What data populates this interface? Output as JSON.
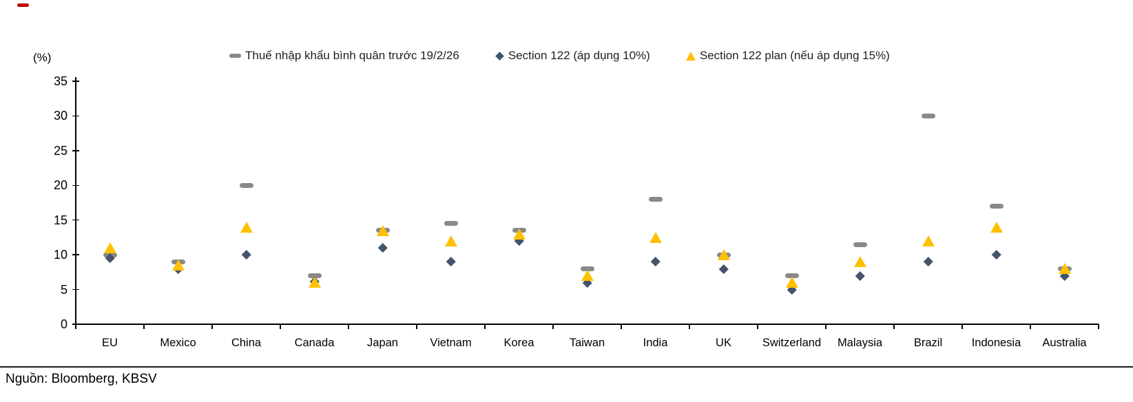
{
  "top_left_mark": {
    "shape": "dash",
    "color": "#C00000"
  },
  "source": "Nguồn: Bloomberg, KBSV",
  "chart_data": {
    "type": "scatter",
    "title": "",
    "ylabel": "(%)",
    "xlabel": "",
    "ylim": [
      0,
      35
    ],
    "yticks": [
      0,
      5,
      10,
      15,
      20,
      25,
      30,
      35
    ],
    "grid": false,
    "legend_position": "top",
    "categories": [
      "EU",
      "Mexico",
      "China",
      "Canada",
      "Japan",
      "Vietnam",
      "Korea",
      "Taiwan",
      "India",
      "UK",
      "Switzerland",
      "Malaysia",
      "Brazil",
      "Indonesia",
      "Australia"
    ],
    "series": [
      {
        "name": "Thuế nhập khẩu bình quân trước 19/2/26",
        "marker": "dash",
        "color": "#898989",
        "values": [
          10,
          9,
          20,
          7,
          13.5,
          14.5,
          13.5,
          8,
          18,
          10,
          7,
          11.5,
          30,
          17,
          8
        ]
      },
      {
        "name": "Section 122 (áp dụng 10%)",
        "marker": "diamond",
        "color": "#44546A",
        "values": [
          9.5,
          8,
          10,
          6.2,
          11,
          9,
          12,
          6,
          9,
          8,
          5,
          7,
          9,
          10,
          7
        ]
      },
      {
        "name": "Section 122 plan (nếu áp dụng 15%)",
        "marker": "triangle",
        "color": "#FFC000",
        "values": [
          11,
          8.5,
          14,
          6,
          13.5,
          12,
          13,
          7,
          12.5,
          10,
          6,
          9,
          12,
          14,
          8
        ]
      }
    ]
  }
}
